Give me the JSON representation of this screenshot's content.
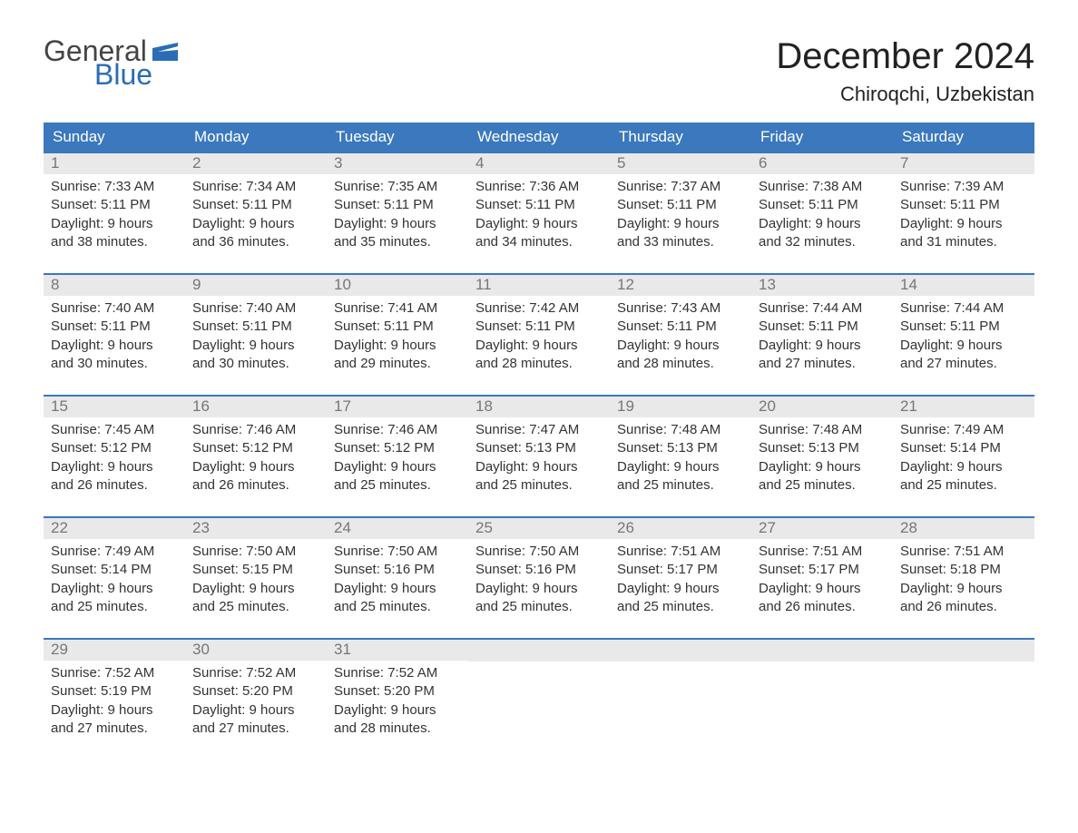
{
  "brand": {
    "word1": "General",
    "word2": "Blue"
  },
  "title": "December 2024",
  "location": "Chiroqchi, Uzbekistan",
  "colors": {
    "header_bg": "#3b78bd",
    "header_text": "#ffffff",
    "daynum_bg": "#e9e9e9",
    "daynum_text": "#777777",
    "body_text": "#333333",
    "brand_blue": "#2a6db5",
    "week_border": "#3b78bd",
    "background": "#ffffff"
  },
  "typography": {
    "title_fontsize": 40,
    "location_fontsize": 22,
    "dayheader_fontsize": 17,
    "daynum_fontsize": 17,
    "detail_fontsize": 15,
    "logo_fontsize": 32
  },
  "labels": {
    "sunrise": "Sunrise:",
    "sunset": "Sunset:",
    "daylight": "Daylight:"
  },
  "day_names": [
    "Sunday",
    "Monday",
    "Tuesday",
    "Wednesday",
    "Thursday",
    "Friday",
    "Saturday"
  ],
  "weeks": [
    [
      {
        "day": "1",
        "sunrise": "7:33 AM",
        "sunset": "5:11 PM",
        "daylight1": "9 hours",
        "daylight2": "and 38 minutes."
      },
      {
        "day": "2",
        "sunrise": "7:34 AM",
        "sunset": "5:11 PM",
        "daylight1": "9 hours",
        "daylight2": "and 36 minutes."
      },
      {
        "day": "3",
        "sunrise": "7:35 AM",
        "sunset": "5:11 PM",
        "daylight1": "9 hours",
        "daylight2": "and 35 minutes."
      },
      {
        "day": "4",
        "sunrise": "7:36 AM",
        "sunset": "5:11 PM",
        "daylight1": "9 hours",
        "daylight2": "and 34 minutes."
      },
      {
        "day": "5",
        "sunrise": "7:37 AM",
        "sunset": "5:11 PM",
        "daylight1": "9 hours",
        "daylight2": "and 33 minutes."
      },
      {
        "day": "6",
        "sunrise": "7:38 AM",
        "sunset": "5:11 PM",
        "daylight1": "9 hours",
        "daylight2": "and 32 minutes."
      },
      {
        "day": "7",
        "sunrise": "7:39 AM",
        "sunset": "5:11 PM",
        "daylight1": "9 hours",
        "daylight2": "and 31 minutes."
      }
    ],
    [
      {
        "day": "8",
        "sunrise": "7:40 AM",
        "sunset": "5:11 PM",
        "daylight1": "9 hours",
        "daylight2": "and 30 minutes."
      },
      {
        "day": "9",
        "sunrise": "7:40 AM",
        "sunset": "5:11 PM",
        "daylight1": "9 hours",
        "daylight2": "and 30 minutes."
      },
      {
        "day": "10",
        "sunrise": "7:41 AM",
        "sunset": "5:11 PM",
        "daylight1": "9 hours",
        "daylight2": "and 29 minutes."
      },
      {
        "day": "11",
        "sunrise": "7:42 AM",
        "sunset": "5:11 PM",
        "daylight1": "9 hours",
        "daylight2": "and 28 minutes."
      },
      {
        "day": "12",
        "sunrise": "7:43 AM",
        "sunset": "5:11 PM",
        "daylight1": "9 hours",
        "daylight2": "and 28 minutes."
      },
      {
        "day": "13",
        "sunrise": "7:44 AM",
        "sunset": "5:11 PM",
        "daylight1": "9 hours",
        "daylight2": "and 27 minutes."
      },
      {
        "day": "14",
        "sunrise": "7:44 AM",
        "sunset": "5:11 PM",
        "daylight1": "9 hours",
        "daylight2": "and 27 minutes."
      }
    ],
    [
      {
        "day": "15",
        "sunrise": "7:45 AM",
        "sunset": "5:12 PM",
        "daylight1": "9 hours",
        "daylight2": "and 26 minutes."
      },
      {
        "day": "16",
        "sunrise": "7:46 AM",
        "sunset": "5:12 PM",
        "daylight1": "9 hours",
        "daylight2": "and 26 minutes."
      },
      {
        "day": "17",
        "sunrise": "7:46 AM",
        "sunset": "5:12 PM",
        "daylight1": "9 hours",
        "daylight2": "and 25 minutes."
      },
      {
        "day": "18",
        "sunrise": "7:47 AM",
        "sunset": "5:13 PM",
        "daylight1": "9 hours",
        "daylight2": "and 25 minutes."
      },
      {
        "day": "19",
        "sunrise": "7:48 AM",
        "sunset": "5:13 PM",
        "daylight1": "9 hours",
        "daylight2": "and 25 minutes."
      },
      {
        "day": "20",
        "sunrise": "7:48 AM",
        "sunset": "5:13 PM",
        "daylight1": "9 hours",
        "daylight2": "and 25 minutes."
      },
      {
        "day": "21",
        "sunrise": "7:49 AM",
        "sunset": "5:14 PM",
        "daylight1": "9 hours",
        "daylight2": "and 25 minutes."
      }
    ],
    [
      {
        "day": "22",
        "sunrise": "7:49 AM",
        "sunset": "5:14 PM",
        "daylight1": "9 hours",
        "daylight2": "and 25 minutes."
      },
      {
        "day": "23",
        "sunrise": "7:50 AM",
        "sunset": "5:15 PM",
        "daylight1": "9 hours",
        "daylight2": "and 25 minutes."
      },
      {
        "day": "24",
        "sunrise": "7:50 AM",
        "sunset": "5:16 PM",
        "daylight1": "9 hours",
        "daylight2": "and 25 minutes."
      },
      {
        "day": "25",
        "sunrise": "7:50 AM",
        "sunset": "5:16 PM",
        "daylight1": "9 hours",
        "daylight2": "and 25 minutes."
      },
      {
        "day": "26",
        "sunrise": "7:51 AM",
        "sunset": "5:17 PM",
        "daylight1": "9 hours",
        "daylight2": "and 25 minutes."
      },
      {
        "day": "27",
        "sunrise": "7:51 AM",
        "sunset": "5:17 PM",
        "daylight1": "9 hours",
        "daylight2": "and 26 minutes."
      },
      {
        "day": "28",
        "sunrise": "7:51 AM",
        "sunset": "5:18 PM",
        "daylight1": "9 hours",
        "daylight2": "and 26 minutes."
      }
    ],
    [
      {
        "day": "29",
        "sunrise": "7:52 AM",
        "sunset": "5:19 PM",
        "daylight1": "9 hours",
        "daylight2": "and 27 minutes."
      },
      {
        "day": "30",
        "sunrise": "7:52 AM",
        "sunset": "5:20 PM",
        "daylight1": "9 hours",
        "daylight2": "and 27 minutes."
      },
      {
        "day": "31",
        "sunrise": "7:52 AM",
        "sunset": "5:20 PM",
        "daylight1": "9 hours",
        "daylight2": "and 28 minutes."
      },
      {
        "empty": true
      },
      {
        "empty": true
      },
      {
        "empty": true
      },
      {
        "empty": true
      }
    ]
  ]
}
